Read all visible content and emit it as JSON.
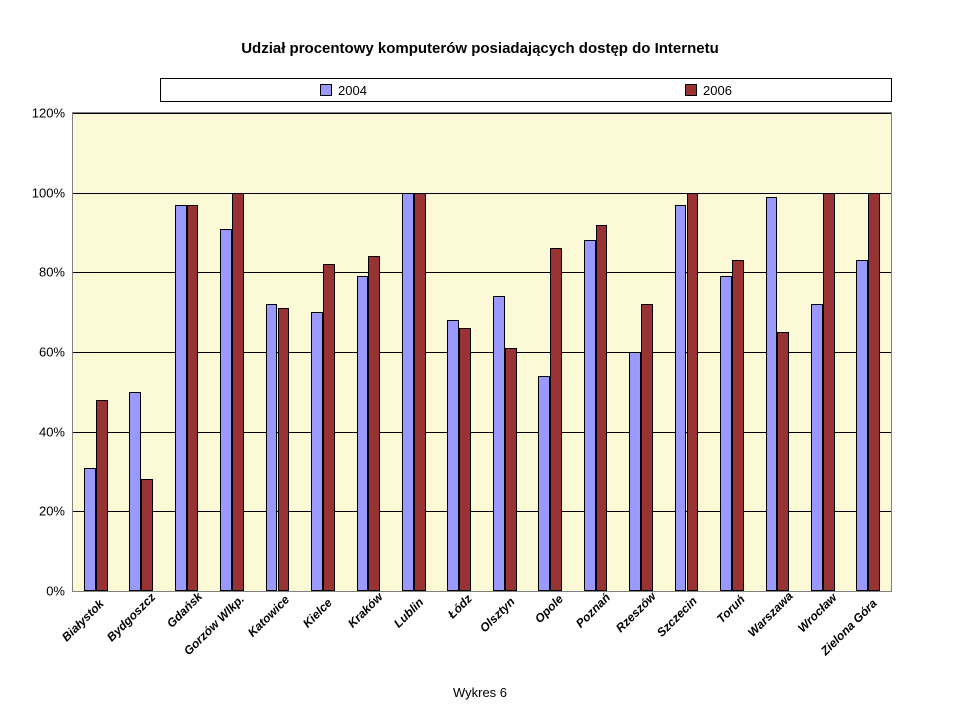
{
  "chart": {
    "type": "bar",
    "title": "Udział procentowy komputerów posiadających dostęp do Internetu",
    "caption": "Wykres 6",
    "background_color": "#fbf9d6",
    "grid_color": "#000000",
    "series": [
      {
        "name": "2004",
        "color": "#9999ff",
        "border": "#000000"
      },
      {
        "name": "2006",
        "color": "#993333",
        "border": "#000000"
      }
    ],
    "categories": [
      "Białystok",
      "Bydgoszcz",
      "Gdańsk",
      "Gorzów Wlkp.",
      "Katowice",
      "Kielce",
      "Kraków",
      "Lublin",
      "Łódz",
      "Olsztyn",
      "Opole",
      "Poznań",
      "Rzeszów",
      "Szczecin",
      "Toruń",
      "Warszawa",
      "Wrocław",
      "Zielona Góra"
    ],
    "data": {
      "2004": [
        31,
        50,
        97,
        91,
        72,
        70,
        79,
        100,
        68,
        74,
        54,
        88,
        60,
        97,
        79,
        99,
        72,
        83
      ],
      "2006": [
        48,
        28,
        97,
        100,
        71,
        82,
        84,
        100,
        66,
        61,
        86,
        92,
        72,
        100,
        83,
        65,
        100,
        100
      ]
    },
    "y_axis": {
      "min": 0,
      "max": 120,
      "ticks": [
        0,
        20,
        40,
        60,
        80,
        100,
        120
      ],
      "format_suffix": "%"
    },
    "title_fontsize": 15,
    "label_fontsize": 13,
    "category_fontsize": 12,
    "bar_cluster_width": 0.52,
    "bar_gap": 0
  }
}
